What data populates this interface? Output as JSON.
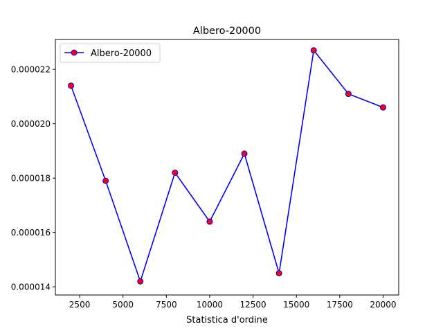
{
  "chart_data": {
    "type": "line",
    "title": "Albero-20000",
    "xlabel": "Statistica d'ordine",
    "ylabel": "",
    "xlim": [
      1100,
      20900
    ],
    "ylim": [
      1.37e-05,
      2.31e-05
    ],
    "x_ticks": [
      2500,
      5000,
      7500,
      10000,
      12500,
      15000,
      17500,
      20000
    ],
    "x_tick_labels": [
      "2500",
      "5000",
      "7500",
      "10000",
      "12500",
      "15000",
      "17500",
      "20000"
    ],
    "y_ticks": [
      1.4e-05,
      1.6e-05,
      1.8e-05,
      2e-05,
      2.2e-05
    ],
    "y_tick_labels": [
      "0.000014",
      "0.000016",
      "0.000018",
      "0.000020",
      "0.000022"
    ],
    "grid": false,
    "legend_position": "upper left",
    "series": [
      {
        "name": "Albero-20000",
        "line_color": "#0000ff",
        "marker_face_color": "#ff0000",
        "marker_edge_color": "#0000ff",
        "x": [
          2000,
          4000,
          6000,
          8000,
          10000,
          12000,
          14000,
          16000,
          18000,
          20000
        ],
        "y": [
          2.14e-05,
          1.79e-05,
          1.42e-05,
          1.82e-05,
          1.64e-05,
          1.89e-05,
          1.45e-05,
          2.27e-05,
          2.11e-05,
          2.06e-05
        ]
      }
    ]
  }
}
